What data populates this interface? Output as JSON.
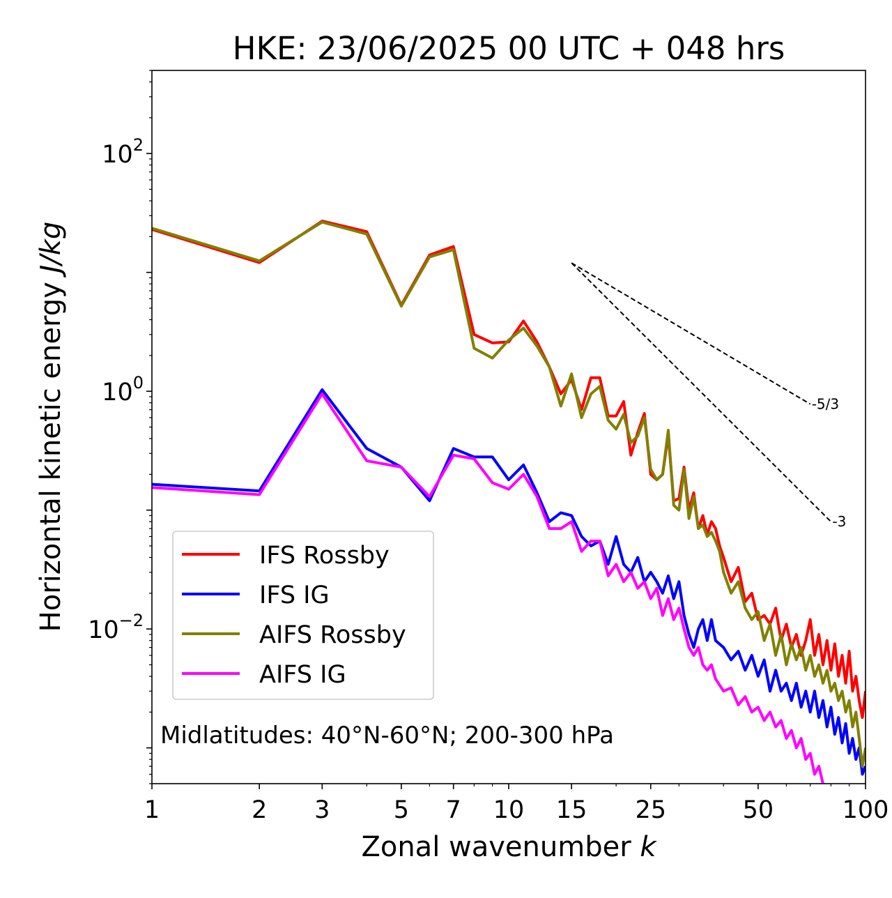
{
  "chart_data": {
    "type": "line",
    "title": "HKE: 23/06/2025 00 UTC + 048 hrs",
    "xlabel_text": "Zonal wavenumber ",
    "xlabel_var": "k",
    "ylabel_text": "Horizontal kinetic energy ",
    "ylabel_unit": "J/kg",
    "xscale": "log",
    "yscale": "log",
    "xlim": [
      1,
      100
    ],
    "ylim": [
      0.0005,
      500
    ],
    "xticks": [
      1,
      2,
      3,
      5,
      7,
      10,
      15,
      25,
      50,
      100
    ],
    "xtick_labels": [
      "1",
      "2",
      "3",
      "5",
      "7",
      "10",
      "15",
      "25",
      "50",
      "100"
    ],
    "yticks": [
      0.01,
      1,
      100
    ],
    "ytick_base": "10",
    "ytick_exps": [
      "−2",
      "0",
      "2"
    ],
    "grid": false,
    "legend_position": "lower-left",
    "annotation": "Midlatitudes: 40°N-60°N; 200-300 hPa",
    "reference_lines": [
      {
        "label": "-5/3",
        "x": [
          15,
          70
        ],
        "y": [
          12.0,
          0.78
        ]
      },
      {
        "label": "-3",
        "x": [
          15,
          80
        ],
        "y": [
          12.0,
          0.08
        ]
      }
    ],
    "series": [
      {
        "name": "IFS Rossby",
        "color": "#ff0000",
        "points": [
          [
            1,
            23.0
          ],
          [
            2,
            12.1
          ],
          [
            3,
            27.0
          ],
          [
            4,
            22.0
          ],
          [
            5,
            5.3
          ],
          [
            6,
            14.0
          ],
          [
            7,
            16.5
          ],
          [
            8,
            3.0
          ],
          [
            9,
            2.55
          ],
          [
            10,
            2.6
          ],
          [
            11,
            3.9
          ],
          [
            12,
            2.6
          ],
          [
            13,
            1.6
          ],
          [
            14,
            0.95
          ],
          [
            15,
            1.25
          ],
          [
            16,
            0.7
          ],
          [
            17,
            1.3
          ],
          [
            18,
            1.3
          ],
          [
            19,
            0.62
          ],
          [
            20,
            0.62
          ],
          [
            21,
            0.82
          ],
          [
            22,
            0.29
          ],
          [
            23,
            0.45
          ],
          [
            24,
            0.65
          ],
          [
            25,
            0.2
          ],
          [
            26,
            0.18
          ],
          [
            27,
            0.2
          ],
          [
            28,
            0.43
          ],
          [
            29,
            0.12
          ],
          [
            30,
            0.125
          ],
          [
            31,
            0.23
          ],
          [
            32,
            0.1
          ],
          [
            33,
            0.14
          ],
          [
            34,
            0.07
          ],
          [
            35,
            0.09
          ],
          [
            36,
            0.062
          ],
          [
            37,
            0.08
          ],
          [
            38,
            0.07
          ],
          [
            39,
            0.05
          ],
          [
            40,
            0.04
          ],
          [
            42,
            0.025
          ],
          [
            44,
            0.033
          ],
          [
            46,
            0.017
          ],
          [
            48,
            0.02
          ],
          [
            50,
            0.012
          ],
          [
            52,
            0.013
          ],
          [
            54,
            0.011
          ],
          [
            56,
            0.015
          ],
          [
            58,
            0.008
          ],
          [
            60,
            0.011
          ],
          [
            62,
            0.007
          ],
          [
            64,
            0.009
          ],
          [
            66,
            0.006
          ],
          [
            68,
            0.008
          ],
          [
            70,
            0.012
          ],
          [
            72,
            0.006
          ],
          [
            74,
            0.009
          ],
          [
            76,
            0.005
          ],
          [
            78,
            0.008
          ],
          [
            80,
            0.0045
          ],
          [
            82,
            0.0075
          ],
          [
            84,
            0.004
          ],
          [
            86,
            0.006
          ],
          [
            88,
            0.0035
          ],
          [
            90,
            0.0065
          ],
          [
            92,
            0.003
          ],
          [
            94,
            0.004
          ],
          [
            96,
            0.0025
          ],
          [
            98,
            0.0018
          ],
          [
            100,
            0.003
          ]
        ]
      },
      {
        "name": "IFS IG",
        "color": "#0000ff",
        "points": [
          [
            1,
            0.165
          ],
          [
            2,
            0.145
          ],
          [
            3,
            1.03
          ],
          [
            4,
            0.33
          ],
          [
            5,
            0.23
          ],
          [
            6,
            0.12
          ],
          [
            7,
            0.33
          ],
          [
            8,
            0.28
          ],
          [
            9,
            0.28
          ],
          [
            10,
            0.18
          ],
          [
            11,
            0.24
          ],
          [
            12,
            0.14
          ],
          [
            13,
            0.08
          ],
          [
            14,
            0.095
          ],
          [
            15,
            0.09
          ],
          [
            16,
            0.06
          ],
          [
            17,
            0.05
          ],
          [
            18,
            0.055
          ],
          [
            19,
            0.035
          ],
          [
            20,
            0.06
          ],
          [
            21,
            0.035
          ],
          [
            22,
            0.03
          ],
          [
            23,
            0.04
          ],
          [
            24,
            0.025
          ],
          [
            25,
            0.03
          ],
          [
            26,
            0.025
          ],
          [
            27,
            0.02
          ],
          [
            28,
            0.028
          ],
          [
            29,
            0.018
          ],
          [
            30,
            0.025
          ],
          [
            31,
            0.013
          ],
          [
            32,
            0.009
          ],
          [
            33,
            0.007
          ],
          [
            34,
            0.01
          ],
          [
            35,
            0.012
          ],
          [
            36,
            0.008
          ],
          [
            37,
            0.012
          ],
          [
            38,
            0.008
          ],
          [
            40,
            0.007
          ],
          [
            42,
            0.0055
          ],
          [
            44,
            0.0065
          ],
          [
            46,
            0.0045
          ],
          [
            48,
            0.006
          ],
          [
            50,
            0.004
          ],
          [
            52,
            0.0055
          ],
          [
            54,
            0.003
          ],
          [
            56,
            0.0045
          ],
          [
            58,
            0.003
          ],
          [
            60,
            0.0035
          ],
          [
            62,
            0.0025
          ],
          [
            64,
            0.0035
          ],
          [
            66,
            0.0022
          ],
          [
            68,
            0.003
          ],
          [
            70,
            0.002
          ],
          [
            72,
            0.003
          ],
          [
            74,
            0.0018
          ],
          [
            76,
            0.0025
          ],
          [
            78,
            0.0015
          ],
          [
            80,
            0.0022
          ],
          [
            82,
            0.0013
          ],
          [
            84,
            0.0018
          ],
          [
            86,
            0.0011
          ],
          [
            88,
            0.0016
          ],
          [
            90,
            0.0009
          ],
          [
            92,
            0.0012
          ],
          [
            94,
            0.0008
          ],
          [
            96,
            0.001
          ],
          [
            98,
            0.0006
          ],
          [
            100,
            0.0007
          ]
        ]
      },
      {
        "name": "AIFS Rossby",
        "color": "#808000",
        "points": [
          [
            1,
            23.5
          ],
          [
            2,
            12.5
          ],
          [
            3,
            26.5
          ],
          [
            4,
            21.0
          ],
          [
            5,
            5.2
          ],
          [
            6,
            13.5
          ],
          [
            7,
            15.5
          ],
          [
            8,
            2.3
          ],
          [
            9,
            1.9
          ],
          [
            10,
            2.7
          ],
          [
            11,
            3.4
          ],
          [
            12,
            2.4
          ],
          [
            13,
            1.6
          ],
          [
            14,
            0.75
          ],
          [
            15,
            1.4
          ],
          [
            16,
            0.6
          ],
          [
            17,
            0.95
          ],
          [
            18,
            1.1
          ],
          [
            19,
            0.57
          ],
          [
            20,
            0.48
          ],
          [
            21,
            0.64
          ],
          [
            22,
            0.37
          ],
          [
            23,
            0.42
          ],
          [
            24,
            0.6
          ],
          [
            25,
            0.22
          ],
          [
            26,
            0.18
          ],
          [
            27,
            0.2
          ],
          [
            28,
            0.47
          ],
          [
            29,
            0.11
          ],
          [
            30,
            0.1
          ],
          [
            31,
            0.22
          ],
          [
            32,
            0.085
          ],
          [
            33,
            0.13
          ],
          [
            34,
            0.07
          ],
          [
            35,
            0.075
          ],
          [
            36,
            0.06
          ],
          [
            37,
            0.065
          ],
          [
            38,
            0.055
          ],
          [
            39,
            0.045
          ],
          [
            40,
            0.03
          ],
          [
            42,
            0.02
          ],
          [
            44,
            0.025
          ],
          [
            46,
            0.015
          ],
          [
            48,
            0.012
          ],
          [
            50,
            0.014
          ],
          [
            52,
            0.008
          ],
          [
            54,
            0.011
          ],
          [
            56,
            0.006
          ],
          [
            58,
            0.009
          ],
          [
            60,
            0.005
          ],
          [
            62,
            0.0075
          ],
          [
            64,
            0.0055
          ],
          [
            66,
            0.007
          ],
          [
            68,
            0.0045
          ],
          [
            70,
            0.006
          ],
          [
            72,
            0.004
          ],
          [
            74,
            0.005
          ],
          [
            76,
            0.0035
          ],
          [
            78,
            0.0045
          ],
          [
            80,
            0.003
          ],
          [
            82,
            0.0035
          ],
          [
            84,
            0.0025
          ],
          [
            86,
            0.003
          ],
          [
            88,
            0.002
          ],
          [
            90,
            0.0025
          ],
          [
            92,
            0.0015
          ],
          [
            94,
            0.002
          ],
          [
            96,
            0.0012
          ],
          [
            98,
            0.0007
          ],
          [
            100,
            0.001
          ]
        ]
      },
      {
        "name": "AIFS IG",
        "color": "#ff00ff",
        "points": [
          [
            1,
            0.155
          ],
          [
            2,
            0.135
          ],
          [
            3,
            0.95
          ],
          [
            4,
            0.26
          ],
          [
            5,
            0.23
          ],
          [
            6,
            0.13
          ],
          [
            7,
            0.29
          ],
          [
            8,
            0.27
          ],
          [
            9,
            0.17
          ],
          [
            10,
            0.15
          ],
          [
            11,
            0.2
          ],
          [
            12,
            0.13
          ],
          [
            13,
            0.07
          ],
          [
            14,
            0.07
          ],
          [
            15,
            0.08
          ],
          [
            16,
            0.045
          ],
          [
            17,
            0.055
          ],
          [
            18,
            0.055
          ],
          [
            19,
            0.028
          ],
          [
            20,
            0.035
          ],
          [
            21,
            0.025
          ],
          [
            22,
            0.03
          ],
          [
            23,
            0.022
          ],
          [
            24,
            0.025
          ],
          [
            25,
            0.018
          ],
          [
            26,
            0.022
          ],
          [
            27,
            0.013
          ],
          [
            28,
            0.018
          ],
          [
            29,
            0.012
          ],
          [
            30,
            0.015
          ],
          [
            31,
            0.01
          ],
          [
            32,
            0.007
          ],
          [
            33,
            0.006
          ],
          [
            34,
            0.007
          ],
          [
            35,
            0.005
          ],
          [
            36,
            0.0045
          ],
          [
            37,
            0.005
          ],
          [
            38,
            0.0038
          ],
          [
            40,
            0.003
          ],
          [
            42,
            0.0032
          ],
          [
            44,
            0.0023
          ],
          [
            46,
            0.0027
          ],
          [
            48,
            0.002
          ],
          [
            50,
            0.0022
          ],
          [
            52,
            0.0017
          ],
          [
            54,
            0.002
          ],
          [
            56,
            0.0015
          ],
          [
            58,
            0.0017
          ],
          [
            60,
            0.0012
          ],
          [
            62,
            0.0014
          ],
          [
            64,
            0.001
          ],
          [
            66,
            0.0012
          ],
          [
            68,
            0.0008
          ],
          [
            70,
            0.0009
          ],
          [
            72,
            0.0006
          ],
          [
            74,
            0.0007
          ],
          [
            76,
            0.0005
          ]
        ]
      }
    ]
  }
}
